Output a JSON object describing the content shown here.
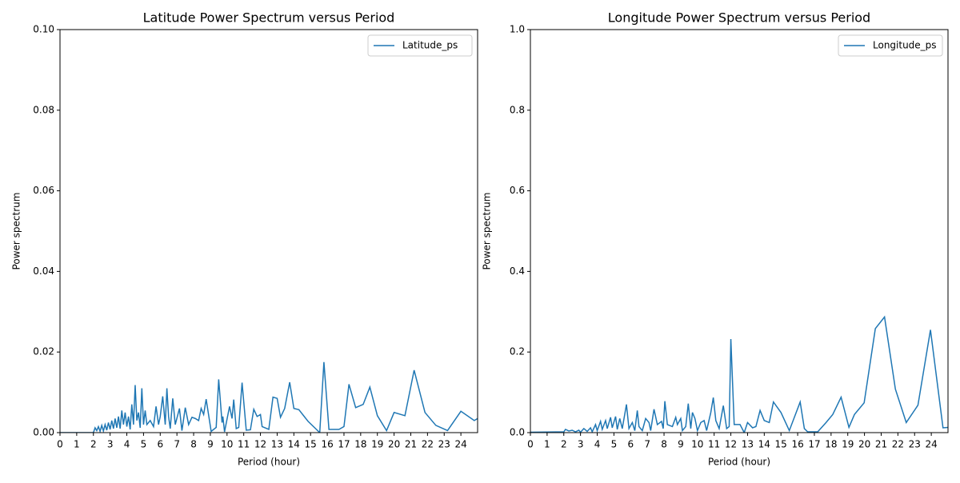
{
  "chart_data": [
    {
      "type": "line",
      "title": "Latitude Power Spectrum versus Period",
      "x_label": "Period (hour)",
      "y_label": "Power spectrum",
      "xlim": [
        0,
        25
      ],
      "xticks": [
        0,
        1,
        2,
        3,
        4,
        5,
        6,
        7,
        8,
        9,
        10,
        11,
        12,
        13,
        14,
        15,
        16,
        17,
        18,
        19,
        20,
        21,
        22,
        23,
        24
      ],
      "ylim": [
        0,
        0.1
      ],
      "yticks": [
        {
          "value": 0,
          "label": "0.00"
        },
        {
          "value": 0.02,
          "label": "0.02"
        },
        {
          "value": 0.04,
          "label": "0.04"
        },
        {
          "value": 0.06,
          "label": "0.06"
        },
        {
          "value": 0.08,
          "label": "0.08"
        },
        {
          "value": 0.1,
          "label": "0.10"
        }
      ],
      "legend": "upper right",
      "x": [
        0,
        2,
        2.1,
        2.2,
        2.3,
        2.4,
        2.5,
        2.6,
        2.7,
        2.8,
        2.9,
        3.0,
        3.1,
        3.2,
        3.3,
        3.4,
        3.5,
        3.6,
        3.7,
        3.8,
        3.9,
        4.0,
        4.1,
        4.2,
        4.3,
        4.4,
        4.5,
        4.6,
        4.7,
        4.8,
        4.9,
        5.0,
        5.1,
        5.2,
        5.4,
        5.6,
        5.75,
        5.9,
        6.0,
        6.15,
        6.3,
        6.4,
        6.5,
        6.6,
        6.75,
        6.9,
        7.15,
        7.3,
        7.5,
        7.7,
        7.9,
        8.1,
        8.3,
        8.45,
        8.6,
        8.75,
        9.05,
        9.35,
        9.5,
        9.7,
        9.75,
        9.85,
        10.15,
        10.3,
        10.4,
        10.55,
        10.7,
        10.9,
        11.15,
        11.4,
        11.6,
        11.8,
        12.0,
        12.1,
        12.5,
        12.75,
        13.0,
        13.2,
        13.45,
        13.75,
        14.0,
        14.3,
        14.85,
        15.55,
        15.8,
        16.1,
        16.7,
        17.0,
        17.3,
        17.7,
        18.15,
        18.55,
        19.0,
        19.55,
        20.0,
        20.65,
        21.2,
        21.85,
        22.5,
        23.2,
        24.0,
        24.8,
        25.0
      ],
      "series": [
        {
          "name": "Latitude_ps",
          "color": "#1f77b4",
          "values": [
            0,
            0,
            0.0012,
            0.0005,
            0.0015,
            0.0003,
            0.0018,
            0.0004,
            0.002,
            0.0006,
            0.0025,
            0.0008,
            0.003,
            0.001,
            0.0035,
            0.0012,
            0.004,
            0.001,
            0.0055,
            0.002,
            0.005,
            0.0015,
            0.004,
            0.0008,
            0.007,
            0.002,
            0.0118,
            0.003,
            0.005,
            0.0012,
            0.011,
            0.002,
            0.0055,
            0.002,
            0.003,
            0.0015,
            0.0065,
            0.002,
            0.004,
            0.009,
            0.002,
            0.011,
            0.004,
            0.001,
            0.0085,
            0.002,
            0.006,
            0.0005,
            0.0062,
            0.002,
            0.0038,
            0.0035,
            0.003,
            0.006,
            0.0045,
            0.0083,
            0.0003,
            0.0013,
            0.0132,
            0.0025,
            0.004,
            0.0002,
            0.0065,
            0.0035,
            0.0082,
            0.001,
            0.0013,
            0.0124,
            0.0006,
            0.0007,
            0.0058,
            0.004,
            0.0045,
            0.0015,
            0.0008,
            0.0088,
            0.0085,
            0.0038,
            0.006,
            0.0125,
            0.006,
            0.0057,
            0.0028,
            0,
            0.0175,
            0.0008,
            0.0008,
            0.0015,
            0.012,
            0.0062,
            0.007,
            0.0113,
            0.0042,
            0.0005,
            0.005,
            0.0042,
            0.0155,
            0.005,
            0.0018,
            0.0005,
            0.0053,
            0.003,
            0.0035
          ]
        }
      ]
    },
    {
      "type": "line",
      "title": "Longitude Power Spectrum versus Period",
      "x_label": "Period (hour)",
      "y_label": "Power spectrum",
      "xlim": [
        0,
        25
      ],
      "xticks": [
        0,
        1,
        2,
        3,
        4,
        5,
        6,
        7,
        8,
        9,
        10,
        11,
        12,
        13,
        14,
        15,
        16,
        17,
        18,
        19,
        20,
        21,
        22,
        23,
        24
      ],
      "ylim": [
        0,
        1
      ],
      "yticks": [
        {
          "value": 0,
          "label": "0.0"
        },
        {
          "value": 0.2,
          "label": "0.2"
        },
        {
          "value": 0.4,
          "label": "0.4"
        },
        {
          "value": 0.6,
          "label": "0.6"
        },
        {
          "value": 0.8,
          "label": "0.8"
        },
        {
          "value": 1,
          "label": "1.0"
        }
      ],
      "legend": "upper right",
      "x": [
        0,
        2,
        2.1,
        2.3,
        2.5,
        2.7,
        2.9,
        3.0,
        3.2,
        3.4,
        3.6,
        3.7,
        3.9,
        4.0,
        4.2,
        4.3,
        4.5,
        4.6,
        4.8,
        4.9,
        5.1,
        5.2,
        5.35,
        5.5,
        5.75,
        5.9,
        6.1,
        6.25,
        6.4,
        6.5,
        6.7,
        6.9,
        7.1,
        7.2,
        7.4,
        7.6,
        7.85,
        7.95,
        8.05,
        8.2,
        8.5,
        8.7,
        8.8,
        9.0,
        9.1,
        9.3,
        9.45,
        9.6,
        9.7,
        9.85,
        10.0,
        10.2,
        10.4,
        10.55,
        10.8,
        10.95,
        11.1,
        11.3,
        11.55,
        11.75,
        11.9,
        12.0,
        12.2,
        12.55,
        12.8,
        13.0,
        13.3,
        13.5,
        13.75,
        14.0,
        14.3,
        14.55,
        15.0,
        15.5,
        16.15,
        16.4,
        16.6,
        17.2,
        17.7,
        18.1,
        18.6,
        19.07,
        19.4,
        19.98,
        20.65,
        21.2,
        21.85,
        22.5,
        23.2,
        23.95,
        24.7,
        25.0
      ],
      "series": [
        {
          "name": "Longitude_ps",
          "color": "#1f77b4",
          "values": [
            0.001,
            0.002,
            0.008,
            0.004,
            0.006,
            0.002,
            0.006,
            0.001,
            0.01,
            0.003,
            0.012,
            0.002,
            0.02,
            0.005,
            0.028,
            0.008,
            0.03,
            0.01,
            0.038,
            0.012,
            0.04,
            0.008,
            0.035,
            0.01,
            0.07,
            0.01,
            0.025,
            0.005,
            0.055,
            0.015,
            0.005,
            0.035,
            0.025,
            0.005,
            0.058,
            0.02,
            0.028,
            0.01,
            0.078,
            0.02,
            0.015,
            0.038,
            0.02,
            0.035,
            0.005,
            0.015,
            0.072,
            0.01,
            0.05,
            0.035,
            0.005,
            0.025,
            0.03,
            0.005,
            0.05,
            0.087,
            0.03,
            0.01,
            0.067,
            0.01,
            0.015,
            0.232,
            0.02,
            0.02,
            0,
            0.025,
            0.012,
            0.015,
            0.055,
            0.03,
            0.025,
            0.076,
            0.05,
            0.005,
            0.076,
            0.01,
            0.002,
            0.002,
            0.025,
            0.045,
            0.088,
            0.013,
            0.045,
            0.074,
            0.258,
            0.287,
            0.108,
            0.025,
            0.068,
            0.255,
            0.012,
            0.013
          ]
        }
      ]
    }
  ]
}
